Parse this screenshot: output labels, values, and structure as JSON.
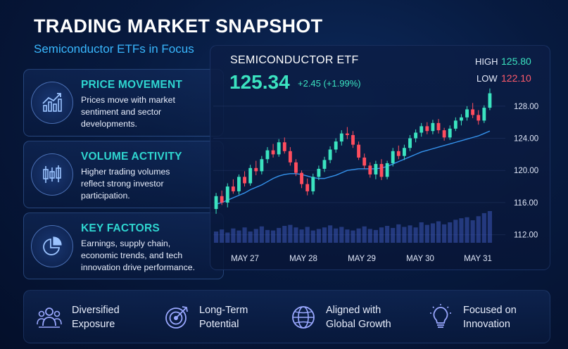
{
  "header": {
    "title": "TRADING MARKET SNAPSHOT",
    "subtitle": "Semiconductor ETFs in Focus"
  },
  "cards": [
    {
      "title": "PRICE MOVEMENT",
      "line1": "Prices move with market",
      "line2": "sentiment and sector",
      "line3": "developments.",
      "icon": "trend-chart-icon"
    },
    {
      "title": "VOLUME ACTIVITY",
      "line1": "Higher trading volumes",
      "line2": "reflect strong investor",
      "line3": "participation.",
      "icon": "candlestick-icon"
    },
    {
      "title": "KEY FACTORS",
      "line1": "Earnings, supply chain,",
      "line2": "economic trends, and tech",
      "line3": "innovation drive performance.",
      "icon": "pie-chart-icon"
    }
  ],
  "quote": {
    "name": "SEMICONDUCTOR ETF",
    "price": "125.34",
    "change": "+2.45 (+1.99%)",
    "high_label": "HIGH",
    "high_value": "125.80",
    "low_label": "LOW",
    "low_value": "122.10"
  },
  "features": [
    {
      "line1": "Diversified",
      "line2": "Exposure",
      "icon": "people-icon"
    },
    {
      "line1": "Long-Term",
      "line2": "Potential",
      "icon": "target-icon"
    },
    {
      "line1": "Aligned with",
      "line2": "Global Growth",
      "icon": "globe-icon"
    },
    {
      "line1": "Focused on",
      "line2": "Innovation",
      "icon": "lightbulb-icon"
    }
  ],
  "colors": {
    "up": "#3be3c0",
    "down": "#ff4d5e",
    "accent": "#39b8ff",
    "ma_line": "#3aa0ff"
  },
  "chart_data": {
    "type": "candlestick",
    "title": "SEMICONDUCTOR ETF",
    "x_tick_labels": [
      "MAY 27",
      "MAY 28",
      "MAY 29",
      "MAY 30",
      "MAY 31"
    ],
    "y_tick_labels": [
      "128.00",
      "124.00",
      "120.00",
      "116.00",
      "112.00"
    ],
    "ylim": [
      111,
      130
    ],
    "grid": true,
    "candles": [
      {
        "o": 115.2,
        "h": 117.2,
        "l": 114.6,
        "c": 116.8
      },
      {
        "o": 116.8,
        "h": 117.5,
        "l": 115.7,
        "c": 116.0
      },
      {
        "o": 116.0,
        "h": 118.4,
        "l": 115.4,
        "c": 118.0
      },
      {
        "o": 118.0,
        "h": 118.9,
        "l": 117.1,
        "c": 117.4
      },
      {
        "o": 117.4,
        "h": 119.5,
        "l": 117.0,
        "c": 119.2
      },
      {
        "o": 119.2,
        "h": 119.9,
        "l": 118.0,
        "c": 118.4
      },
      {
        "o": 118.4,
        "h": 120.7,
        "l": 118.1,
        "c": 120.3
      },
      {
        "o": 120.3,
        "h": 121.2,
        "l": 119.4,
        "c": 119.9
      },
      {
        "o": 119.9,
        "h": 121.8,
        "l": 119.5,
        "c": 121.4
      },
      {
        "o": 121.4,
        "h": 122.9,
        "l": 120.9,
        "c": 122.5
      },
      {
        "o": 122.5,
        "h": 123.3,
        "l": 121.6,
        "c": 122.0
      },
      {
        "o": 122.0,
        "h": 123.9,
        "l": 121.7,
        "c": 123.5
      },
      {
        "o": 123.5,
        "h": 124.1,
        "l": 122.1,
        "c": 122.4
      },
      {
        "o": 122.4,
        "h": 122.9,
        "l": 120.6,
        "c": 121.0
      },
      {
        "o": 121.0,
        "h": 121.4,
        "l": 119.3,
        "c": 119.7
      },
      {
        "o": 119.7,
        "h": 120.0,
        "l": 117.8,
        "c": 118.3
      },
      {
        "o": 118.3,
        "h": 119.0,
        "l": 116.9,
        "c": 117.4
      },
      {
        "o": 117.4,
        "h": 119.6,
        "l": 117.0,
        "c": 119.2
      },
      {
        "o": 119.2,
        "h": 120.6,
        "l": 118.8,
        "c": 120.2
      },
      {
        "o": 120.2,
        "h": 121.7,
        "l": 119.8,
        "c": 121.3
      },
      {
        "o": 121.3,
        "h": 123.0,
        "l": 120.9,
        "c": 122.6
      },
      {
        "o": 122.6,
        "h": 124.0,
        "l": 122.2,
        "c": 123.6
      },
      {
        "o": 123.6,
        "h": 125.0,
        "l": 123.1,
        "c": 124.6
      },
      {
        "o": 124.6,
        "h": 125.4,
        "l": 123.9,
        "c": 124.4
      },
      {
        "o": 124.4,
        "h": 124.9,
        "l": 122.8,
        "c": 123.2
      },
      {
        "o": 123.2,
        "h": 123.6,
        "l": 121.3,
        "c": 121.6
      },
      {
        "o": 121.6,
        "h": 122.1,
        "l": 120.2,
        "c": 120.6
      },
      {
        "o": 120.6,
        "h": 121.0,
        "l": 119.1,
        "c": 119.5
      },
      {
        "o": 119.5,
        "h": 121.2,
        "l": 118.9,
        "c": 120.8
      },
      {
        "o": 120.8,
        "h": 121.4,
        "l": 118.8,
        "c": 119.2
      },
      {
        "o": 119.2,
        "h": 121.2,
        "l": 118.9,
        "c": 120.9
      },
      {
        "o": 120.9,
        "h": 122.8,
        "l": 120.5,
        "c": 122.4
      },
      {
        "o": 122.4,
        "h": 123.1,
        "l": 121.4,
        "c": 121.8
      },
      {
        "o": 121.8,
        "h": 123.2,
        "l": 121.3,
        "c": 122.8
      },
      {
        "o": 122.8,
        "h": 124.4,
        "l": 122.4,
        "c": 124.0
      },
      {
        "o": 124.0,
        "h": 125.1,
        "l": 123.5,
        "c": 124.7
      },
      {
        "o": 124.7,
        "h": 125.9,
        "l": 124.2,
        "c": 125.5
      },
      {
        "o": 125.5,
        "h": 126.0,
        "l": 124.5,
        "c": 124.9
      },
      {
        "o": 124.9,
        "h": 126.3,
        "l": 124.5,
        "c": 125.9
      },
      {
        "o": 125.9,
        "h": 126.4,
        "l": 124.6,
        "c": 125.0
      },
      {
        "o": 125.0,
        "h": 125.3,
        "l": 123.7,
        "c": 124.1
      },
      {
        "o": 124.1,
        "h": 125.6,
        "l": 123.8,
        "c": 125.2
      },
      {
        "o": 125.2,
        "h": 126.6,
        "l": 124.9,
        "c": 126.2
      },
      {
        "o": 126.2,
        "h": 127.0,
        "l": 125.6,
        "c": 126.6
      },
      {
        "o": 126.6,
        "h": 128.0,
        "l": 126.2,
        "c": 127.6
      },
      {
        "o": 127.6,
        "h": 128.4,
        "l": 126.5,
        "c": 126.9
      },
      {
        "o": 126.9,
        "h": 127.5,
        "l": 125.7,
        "c": 126.2
      },
      {
        "o": 126.2,
        "h": 128.1,
        "l": 125.9,
        "c": 127.8
      },
      {
        "o": 127.8,
        "h": 130.2,
        "l": 127.5,
        "c": 129.6
      }
    ],
    "moving_average": [
      115.8,
      116.0,
      116.3,
      116.6,
      116.9,
      117.2,
      117.6,
      117.9,
      118.2,
      118.6,
      119.0,
      119.3,
      119.5,
      119.6,
      119.6,
      119.5,
      119.3,
      119.1,
      119.0,
      119.0,
      119.2,
      119.4,
      119.7,
      120.0,
      120.1,
      120.2,
      120.2,
      120.2,
      120.2,
      120.3,
      120.5,
      120.8,
      121.1,
      121.4,
      121.7,
      122.0,
      122.3,
      122.5,
      122.7,
      122.9,
      123.1,
      123.3,
      123.5,
      123.7,
      123.9,
      124.1,
      124.3,
      124.6,
      124.9
    ],
    "volume": [
      22,
      26,
      20,
      28,
      24,
      30,
      22,
      27,
      32,
      25,
      24,
      29,
      33,
      35,
      30,
      26,
      31,
      24,
      27,
      30,
      34,
      28,
      31,
      26,
      24,
      28,
      32,
      27,
      25,
      30,
      33,
      29,
      36,
      31,
      34,
      30,
      40,
      35,
      38,
      42,
      36,
      40,
      45,
      48,
      50,
      44,
      52,
      58,
      62
    ]
  }
}
